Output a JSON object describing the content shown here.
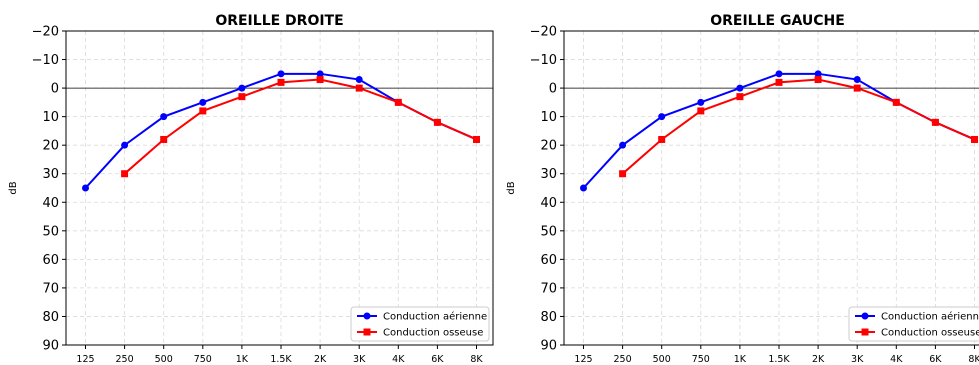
{
  "chart_data": [
    {
      "type": "line",
      "title": "OREILLE DROITE",
      "xlabel": "",
      "ylabel": "dB",
      "categories": [
        "125",
        "250",
        "500",
        "750",
        "1K",
        "1.5K",
        "2K",
        "3K",
        "4K",
        "6K",
        "8K"
      ],
      "ylim": [
        90,
        -20
      ],
      "yticks": [
        -20,
        -10,
        0,
        10,
        20,
        30,
        40,
        50,
        60,
        70,
        80,
        90
      ],
      "grid": true,
      "reference_line": 0,
      "legend_position": "bottom-right",
      "series": [
        {
          "name": "Conduction aérienne",
          "color": "#0000ff",
          "marker": "circle",
          "values": [
            35,
            20,
            10,
            5,
            0,
            -5,
            -5,
            -3,
            5,
            12,
            18
          ]
        },
        {
          "name": "Conduction osseuse",
          "color": "#ff0000",
          "marker": "square",
          "values": [
            null,
            30,
            18,
            8,
            3,
            -2,
            -3,
            0,
            5,
            12,
            18
          ]
        }
      ]
    },
    {
      "type": "line",
      "title": "OREILLE GAUCHE",
      "xlabel": "",
      "ylabel": "dB",
      "categories": [
        "125",
        "250",
        "500",
        "750",
        "1K",
        "1.5K",
        "2K",
        "3K",
        "4K",
        "6K",
        "8K"
      ],
      "ylim": [
        90,
        -20
      ],
      "yticks": [
        -20,
        -10,
        0,
        10,
        20,
        30,
        40,
        50,
        60,
        70,
        80,
        90
      ],
      "grid": true,
      "reference_line": 0,
      "legend_position": "bottom-right",
      "series": [
        {
          "name": "Conduction aérienne",
          "color": "#0000ff",
          "marker": "circle",
          "values": [
            35,
            20,
            10,
            5,
            0,
            -5,
            -5,
            -3,
            5,
            12,
            18
          ]
        },
        {
          "name": "Conduction osseuse",
          "color": "#ff0000",
          "marker": "square",
          "values": [
            null,
            30,
            18,
            8,
            3,
            -2,
            -3,
            0,
            5,
            12,
            18
          ]
        }
      ]
    }
  ]
}
